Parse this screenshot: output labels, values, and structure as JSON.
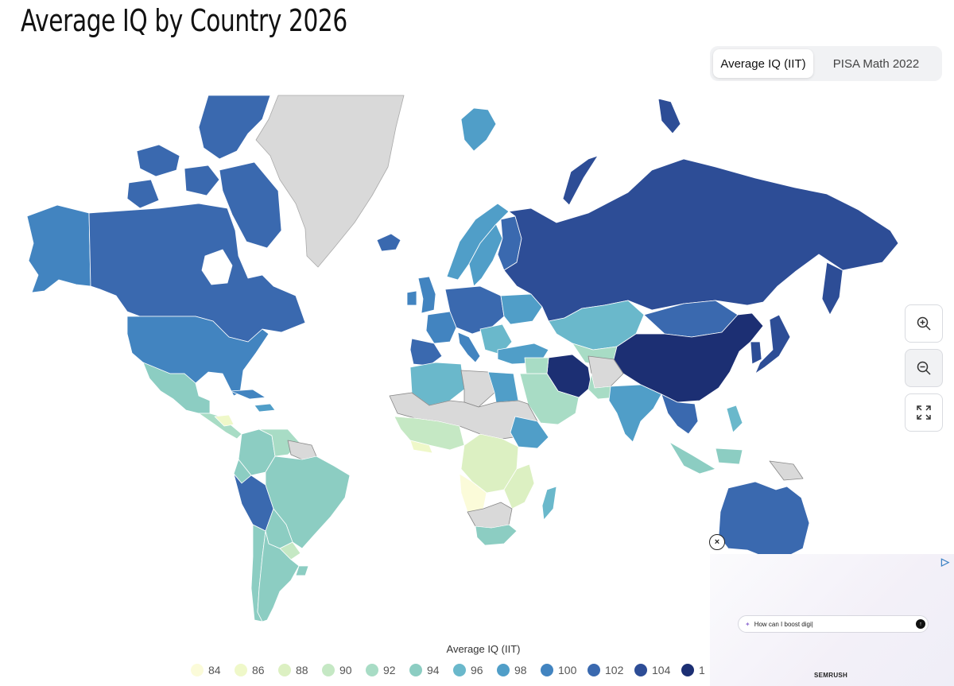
{
  "page": {
    "title": "Average IQ by Country 2026"
  },
  "tabs": [
    {
      "label": "Average IQ (IIT)",
      "active": true
    },
    {
      "label": "PISA Math 2022",
      "active": false
    }
  ],
  "zoom_controls": {
    "zoom_in_icon": "zoom-in-icon",
    "zoom_out_icon": "zoom-out-icon",
    "fullscreen_icon": "fullscreen-icon"
  },
  "colors": {
    "no_data": "#d9d9d9",
    "ocean": "#ffffff",
    "scale": [
      "#fbfbd9",
      "#eff8c9",
      "#dcf0c2",
      "#c5e8c4",
      "#a8dcc5",
      "#8ccdc2",
      "#6ab8cb",
      "#509ec8",
      "#4284c0",
      "#3a69af",
      "#2d4d96",
      "#1c2f73"
    ]
  },
  "legend": {
    "title": "Average IQ (IIT)",
    "items": [
      {
        "label": "84",
        "color": "#fbfbd9"
      },
      {
        "label": "86",
        "color": "#eff8c9"
      },
      {
        "label": "88",
        "color": "#dcf0c2"
      },
      {
        "label": "90",
        "color": "#c5e8c4"
      },
      {
        "label": "92",
        "color": "#a8dcc5"
      },
      {
        "label": "94",
        "color": "#8ccdc2"
      },
      {
        "label": "96",
        "color": "#6ab8cb"
      },
      {
        "label": "98",
        "color": "#509ec8"
      },
      {
        "label": "100",
        "color": "#4284c0"
      },
      {
        "label": "102",
        "color": "#3a69af"
      },
      {
        "label": "104",
        "color": "#2d4d96"
      },
      {
        "label": "1",
        "color": "#1c2f73"
      }
    ]
  },
  "ad": {
    "close_label": "×",
    "info_icon": "ad-choices-icon",
    "input_text": "How can I boost digi|",
    "brand": "SEMRUSH"
  }
}
